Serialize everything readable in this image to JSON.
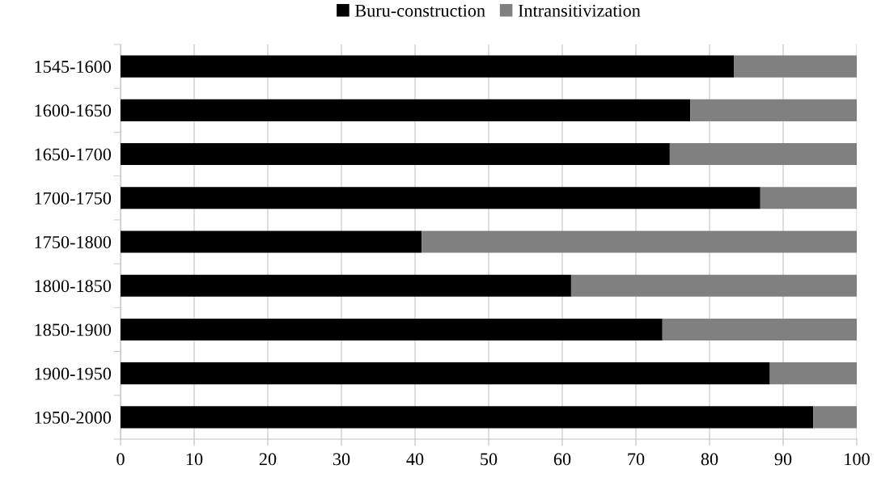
{
  "chart_data": {
    "type": "bar",
    "orientation": "horizontal",
    "stacked": true,
    "categories": [
      "1545-1600",
      "1600-1650",
      "1650-1700",
      "1700-1750",
      "1750-1800",
      "1800-1850",
      "1850-1900",
      "1900-1950",
      "1950-2000"
    ],
    "series": [
      {
        "name": "Buru-construction",
        "color": "#000000",
        "values": [
          83.3,
          77.4,
          74.6,
          86.9,
          40.9,
          61.2,
          73.6,
          88.2,
          94.1
        ]
      },
      {
        "name": "Intransitivization",
        "color": "#808080",
        "values": [
          16.7,
          22.6,
          25.4,
          13.1,
          59.1,
          38.8,
          26.4,
          11.8,
          5.9
        ]
      }
    ],
    "xlim": [
      0,
      100
    ],
    "xticks": [
      0,
      10,
      20,
      30,
      40,
      50,
      60,
      70,
      80,
      90,
      100
    ],
    "grid": "x",
    "legend": "top"
  }
}
